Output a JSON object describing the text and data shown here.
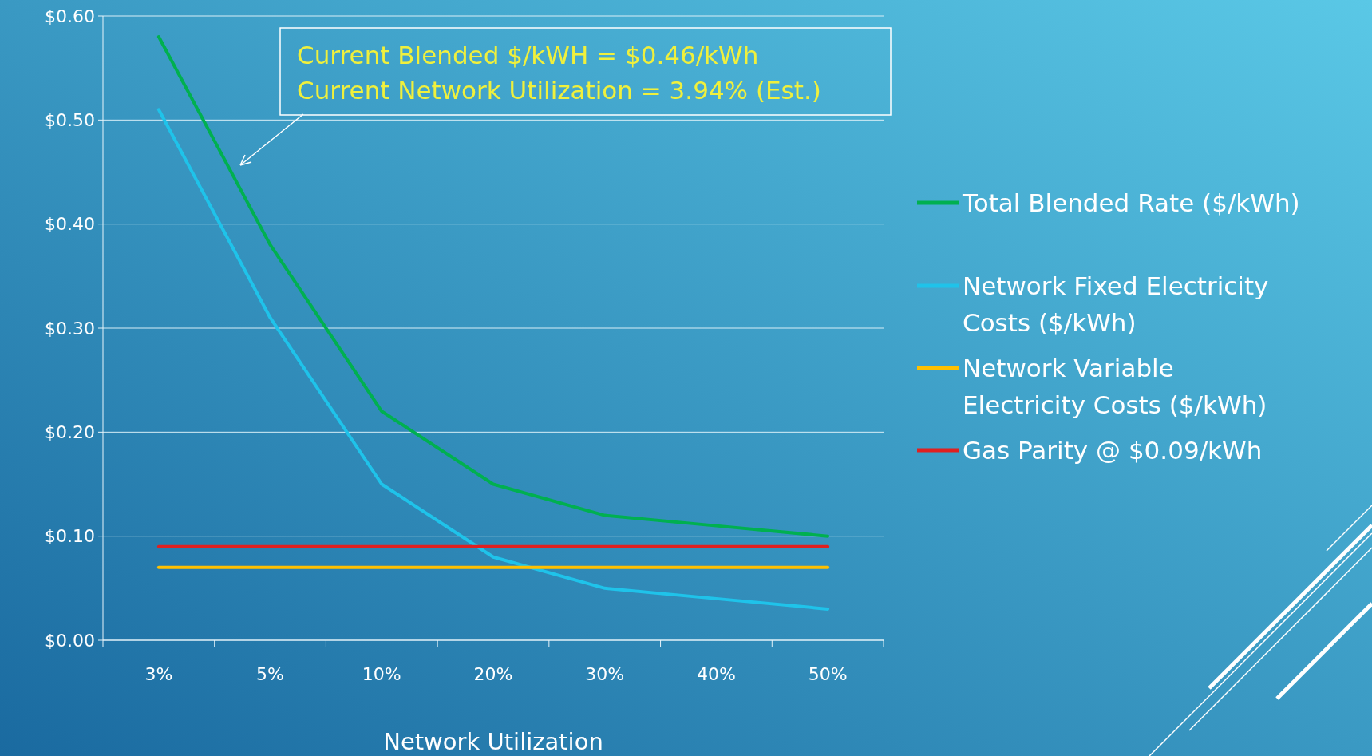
{
  "chart_data": {
    "type": "line",
    "xlabel": "Network Utilization",
    "categories": [
      "3%",
      "5%",
      "10%",
      "20%",
      "30%",
      "40%",
      "50%"
    ],
    "series": [
      {
        "name": "Total Blended Rate ($/kWh)",
        "color": "#00b050",
        "values": [
          0.58,
          0.38,
          0.22,
          0.15,
          0.12,
          0.11,
          0.1
        ]
      },
      {
        "name": "Network Fixed Electricity Costs ($/kWh)",
        "color": "#1fc3ea",
        "values": [
          0.51,
          0.31,
          0.15,
          0.08,
          0.05,
          0.04,
          0.03
        ]
      },
      {
        "name": "Network Variable Electricity Costs ($/kWh)",
        "color": "#ffc000",
        "values": [
          0.07,
          0.07,
          0.07,
          0.07,
          0.07,
          0.07,
          0.07
        ]
      },
      {
        "name": "Gas Parity @ $0.09/kWh",
        "color": "#e02020",
        "values": [
          0.09,
          0.09,
          0.09,
          0.09,
          0.09,
          0.09,
          0.09
        ]
      }
    ],
    "ylim": [
      0,
      0.6
    ],
    "yticks": [
      {
        "value": 0,
        "label": "$0.00"
      },
      {
        "value": 0.1,
        "label": "$0.10"
      },
      {
        "value": 0.2,
        "label": "$0.20"
      },
      {
        "value": 0.3,
        "label": "$0.30"
      },
      {
        "value": 0.4,
        "label": "$0.40"
      },
      {
        "value": 0.5,
        "label": "$0.50"
      },
      {
        "value": 0.6,
        "label": "$0.60"
      }
    ],
    "grid": "y",
    "legend": "right",
    "marker": "none",
    "line_style": "solid",
    "annotations": [
      "Current Blended $/kWH = $0.46/kWh",
      "Current Network Utilization = 3.94% (Est.)"
    ]
  }
}
